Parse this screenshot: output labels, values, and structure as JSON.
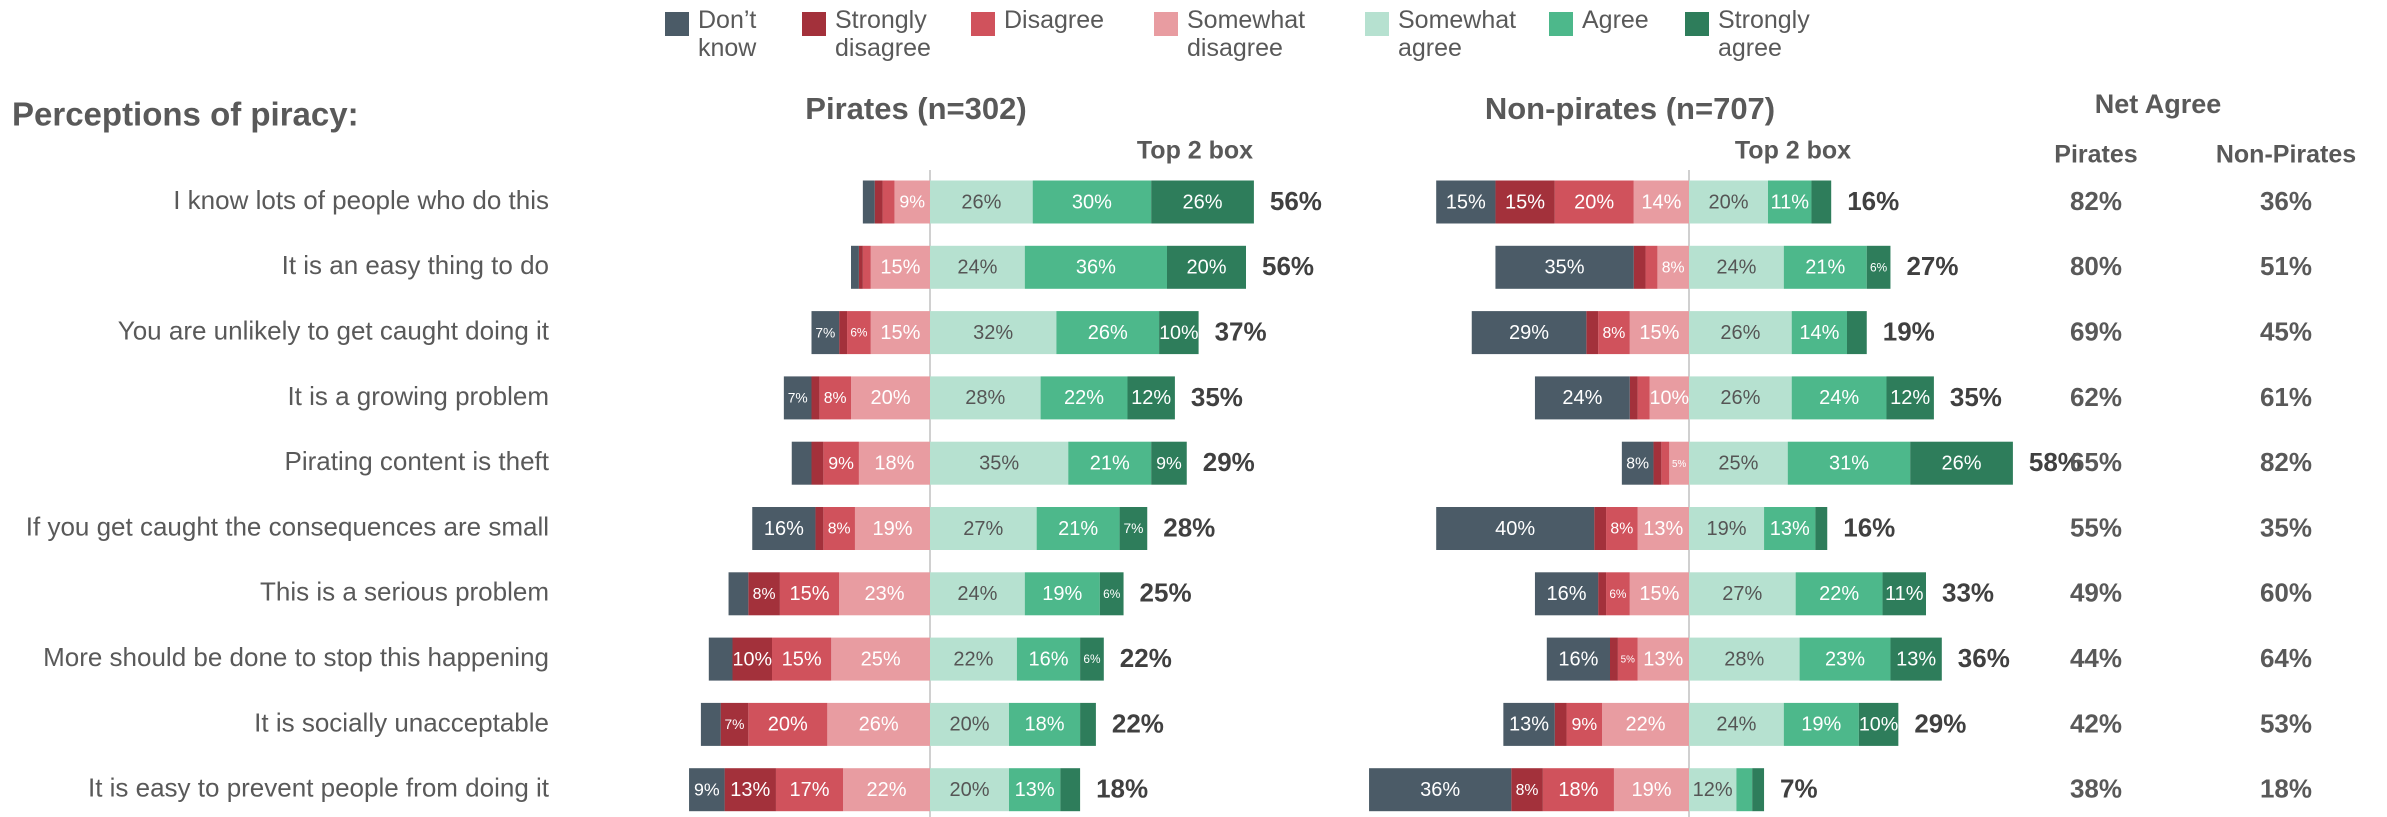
{
  "heading": "Perceptions of piracy:",
  "chart_data": [
    {
      "type": "diverging_bar",
      "title": "Pirates (n=302)",
      "subtitle": "Top 2 box",
      "categories": [
        "I know lots of people who do this",
        "It is an easy thing to do",
        "You are unlikely to get caught doing it",
        "It is a growing problem",
        "Pirating content is theft",
        "If you get caught the consequences are small",
        "This is a serious problem",
        "More should be done to stop this happening",
        "It is socially unacceptable",
        "It is easy to prevent people from doing it"
      ],
      "series": [
        {
          "name": "Don’t know",
          "color": "#4b5b67",
          "values": [
            3,
            2,
            7,
            7,
            5,
            16,
            5,
            6,
            5,
            9
          ],
          "value_labels": [
            null,
            null,
            "7%",
            "7%",
            null,
            "16%",
            null,
            null,
            null,
            "9%"
          ]
        },
        {
          "name": "Strongly disagree",
          "color": "#a3313b",
          "values": [
            2,
            1,
            2,
            2,
            3,
            2,
            8,
            10,
            7,
            13
          ],
          "value_labels": [
            null,
            null,
            null,
            null,
            null,
            null,
            "8%",
            "10%",
            "7%",
            "13%"
          ]
        },
        {
          "name": "Disagree",
          "color": "#d0525c",
          "values": [
            3,
            2,
            6,
            8,
            9,
            8,
            15,
            15,
            20,
            17
          ],
          "value_labels": [
            null,
            null,
            "6%",
            "8%",
            "9%",
            "8%",
            "15%",
            "15%",
            "20%",
            "17%"
          ]
        },
        {
          "name": "Somewhat disagree",
          "color": "#e89ca1",
          "values": [
            9,
            15,
            15,
            20,
            18,
            19,
            23,
            25,
            26,
            22
          ],
          "value_labels": [
            "9%",
            "15%",
            "15%",
            "20%",
            "18%",
            "19%",
            "23%",
            "25%",
            "26%",
            "22%"
          ]
        },
        {
          "name": "Somewhat agree",
          "color": "#b6e1d0",
          "values": [
            26,
            24,
            32,
            28,
            35,
            27,
            24,
            22,
            20,
            20
          ],
          "value_labels": [
            "26%",
            "24%",
            "32%",
            "28%",
            "35%",
            "27%",
            "24%",
            "22%",
            "20%",
            "20%"
          ]
        },
        {
          "name": "Agree",
          "color": "#4db88b",
          "values": [
            30,
            36,
            26,
            22,
            21,
            21,
            19,
            16,
            18,
            13
          ],
          "value_labels": [
            "30%",
            "36%",
            "26%",
            "22%",
            "21%",
            "21%",
            "19%",
            "16%",
            "18%",
            "13%"
          ]
        },
        {
          "name": "Strongly agree",
          "color": "#2e7d5b",
          "values": [
            26,
            20,
            10,
            12,
            9,
            7,
            6,
            6,
            4,
            5
          ],
          "value_labels": [
            "26%",
            "20%",
            "10%",
            "12%",
            "9%",
            "7%",
            "6%",
            "6%",
            null,
            null
          ]
        }
      ],
      "top2_box": [
        "56%",
        "56%",
        "37%",
        "35%",
        "29%",
        "28%",
        "25%",
        "22%",
        "22%",
        "18%"
      ]
    },
    {
      "type": "diverging_bar",
      "title": "Non-pirates (n=707)",
      "subtitle": "Top 2 box",
      "series": [
        {
          "name": "Don’t know",
          "color": "#4b5b67",
          "values": [
            15,
            35,
            29,
            24,
            8,
            40,
            16,
            16,
            13,
            36
          ],
          "value_labels": [
            "15%",
            "35%",
            "29%",
            "24%",
            "8%",
            "40%",
            "16%",
            "16%",
            "13%",
            "36%"
          ]
        },
        {
          "name": "Strongly disagree",
          "color": "#a3313b",
          "values": [
            15,
            3,
            3,
            2,
            2,
            3,
            2,
            2,
            3,
            8
          ],
          "value_labels": [
            "15%",
            null,
            null,
            null,
            null,
            null,
            null,
            null,
            null,
            "8%"
          ]
        },
        {
          "name": "Disagree",
          "color": "#d0525c",
          "values": [
            20,
            3,
            8,
            3,
            2,
            8,
            6,
            5,
            9,
            18
          ],
          "value_labels": [
            "20%",
            null,
            "8%",
            null,
            null,
            "8%",
            "6%",
            "5%",
            "9%",
            "18%"
          ]
        },
        {
          "name": "Somewhat disagree",
          "color": "#e89ca1",
          "values": [
            14,
            8,
            15,
            10,
            5,
            13,
            15,
            13,
            22,
            19
          ],
          "value_labels": [
            "14%",
            "8%",
            "15%",
            "10%",
            "5%",
            "13%",
            "15%",
            "13%",
            "22%",
            "19%"
          ]
        },
        {
          "name": "Somewhat agree",
          "color": "#b6e1d0",
          "values": [
            20,
            24,
            26,
            26,
            25,
            19,
            27,
            28,
            24,
            12
          ],
          "value_labels": [
            "20%",
            "24%",
            "26%",
            "26%",
            "25%",
            "19%",
            "27%",
            "28%",
            "24%",
            "12%"
          ]
        },
        {
          "name": "Agree",
          "color": "#4db88b",
          "values": [
            11,
            21,
            14,
            24,
            31,
            13,
            22,
            23,
            19,
            4
          ],
          "value_labels": [
            "11%",
            "21%",
            "14%",
            "24%",
            "31%",
            "13%",
            "22%",
            "23%",
            "19%",
            null
          ]
        },
        {
          "name": "Strongly agree",
          "color": "#2e7d5b",
          "values": [
            5,
            6,
            5,
            12,
            26,
            3,
            11,
            13,
            10,
            3
          ],
          "value_labels": [
            null,
            "6%",
            null,
            "12%",
            "26%",
            null,
            "11%",
            "13%",
            "10%",
            null
          ]
        }
      ],
      "top2_box": [
        "16%",
        "27%",
        "19%",
        "35%",
        "58%",
        "16%",
        "33%",
        "36%",
        "29%",
        "7%"
      ]
    }
  ],
  "net_agree": {
    "title": "Net Agree",
    "columns": [
      "Pirates",
      "Non-Pirates"
    ],
    "rows": [
      [
        "82%",
        "36%"
      ],
      [
        "80%",
        "51%"
      ],
      [
        "69%",
        "45%"
      ],
      [
        "62%",
        "61%"
      ],
      [
        "65%",
        "82%"
      ],
      [
        "55%",
        "35%"
      ],
      [
        "49%",
        "60%"
      ],
      [
        "44%",
        "64%"
      ],
      [
        "42%",
        "53%"
      ],
      [
        "38%",
        "18%"
      ]
    ]
  }
}
